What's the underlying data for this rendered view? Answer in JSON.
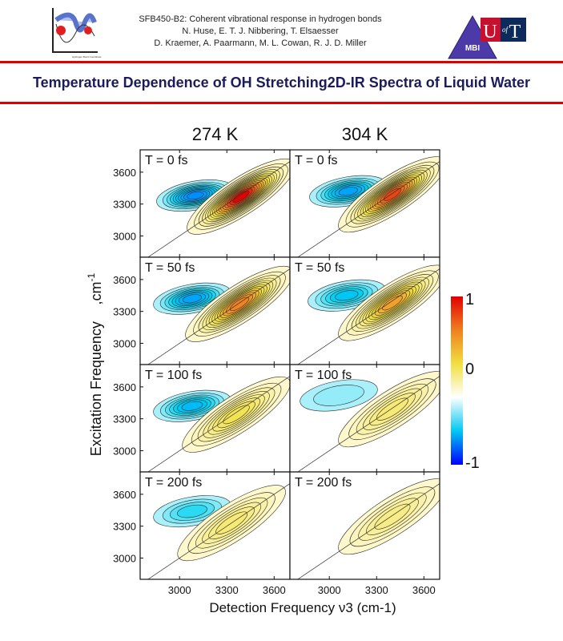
{
  "header": {
    "line1": "SFB450-B2: Coherent vibrational response in hydrogen bonds",
    "line2": "N. Huse, E. T. J. Nibbering, T. Elsaesser",
    "line3": "D. Kraemer, A. Paarmann, M. L. Cowan, R. J. D. Miller",
    "logo_left_labels": [
      "Potential Energy",
      "Hydrogen Bond Coordinate"
    ],
    "logo_mbi": "MBI",
    "logo_uoft": "UofT"
  },
  "title": "Temperature Dependence of OH Stretching2D-IR Spectra of Liquid Water",
  "colors": {
    "accent_red": "#e00000",
    "title_navy": "#1c1c5c"
  },
  "chart_data": {
    "type": "heatmap",
    "subtype": "2D contour maps",
    "columns": [
      "274 K",
      "304 K"
    ],
    "rows": [
      "T = 0 fs",
      "T = 50 fs",
      "T = 100 fs",
      "T = 200 fs"
    ],
    "xlabel": "Detection Frequency ν3 (cm-1)",
    "ylabel_parts": [
      "Excitation Frequency",
      ",cm",
      "-1"
    ],
    "xticks": [
      3000,
      3300,
      3600
    ],
    "yticks": [
      3000,
      3300,
      3600
    ],
    "xlim": [
      2750,
      3700
    ],
    "ylim": [
      2800,
      3810
    ],
    "diagonal_line": true,
    "colorbar": {
      "ticks": [
        "1",
        "0",
        "-1"
      ],
      "range": [
        -1,
        1
      ],
      "colors": [
        "#0000ff",
        "#00c8f0",
        "#ffffff",
        "#f0e040",
        "#f08020",
        "#e00000"
      ]
    },
    "panels": [
      {
        "temperature": "274 K",
        "delay": "T = 0 fs",
        "peaks": [
          {
            "x": 3100,
            "y": 3380,
            "amp": -0.6
          },
          {
            "x": 3390,
            "y": 3370,
            "amp": 1.0
          }
        ]
      },
      {
        "temperature": "304 K",
        "delay": "T = 0 fs",
        "peaks": [
          {
            "x": 3120,
            "y": 3420,
            "amp": -0.5
          },
          {
            "x": 3400,
            "y": 3390,
            "amp": 0.9
          }
        ]
      },
      {
        "temperature": "274 K",
        "delay": "T = 50 fs",
        "peaks": [
          {
            "x": 3080,
            "y": 3420,
            "amp": -0.5
          },
          {
            "x": 3380,
            "y": 3370,
            "amp": 0.8
          }
        ]
      },
      {
        "temperature": "304 K",
        "delay": "T = 50 fs",
        "peaks": [
          {
            "x": 3110,
            "y": 3450,
            "amp": -0.35
          },
          {
            "x": 3400,
            "y": 3380,
            "amp": 0.7
          }
        ]
      },
      {
        "temperature": "274 K",
        "delay": "T = 100 fs",
        "peaks": [
          {
            "x": 3080,
            "y": 3420,
            "amp": -0.4
          },
          {
            "x": 3360,
            "y": 3340,
            "amp": 0.45
          }
        ]
      },
      {
        "temperature": "304 K",
        "delay": "T = 100 fs",
        "peaks": [
          {
            "x": 3060,
            "y": 3520,
            "amp": -0.1
          },
          {
            "x": 3400,
            "y": 3390,
            "amp": 0.35
          }
        ]
      },
      {
        "temperature": "274 K",
        "delay": "T = 200 fs",
        "peaks": [
          {
            "x": 3080,
            "y": 3440,
            "amp": -0.25
          },
          {
            "x": 3330,
            "y": 3330,
            "amp": 0.35
          }
        ]
      },
      {
        "temperature": "304 K",
        "delay": "T = 200 fs",
        "peaks": [
          {
            "x": 3400,
            "y": 3390,
            "amp": 0.3
          }
        ]
      }
    ]
  }
}
